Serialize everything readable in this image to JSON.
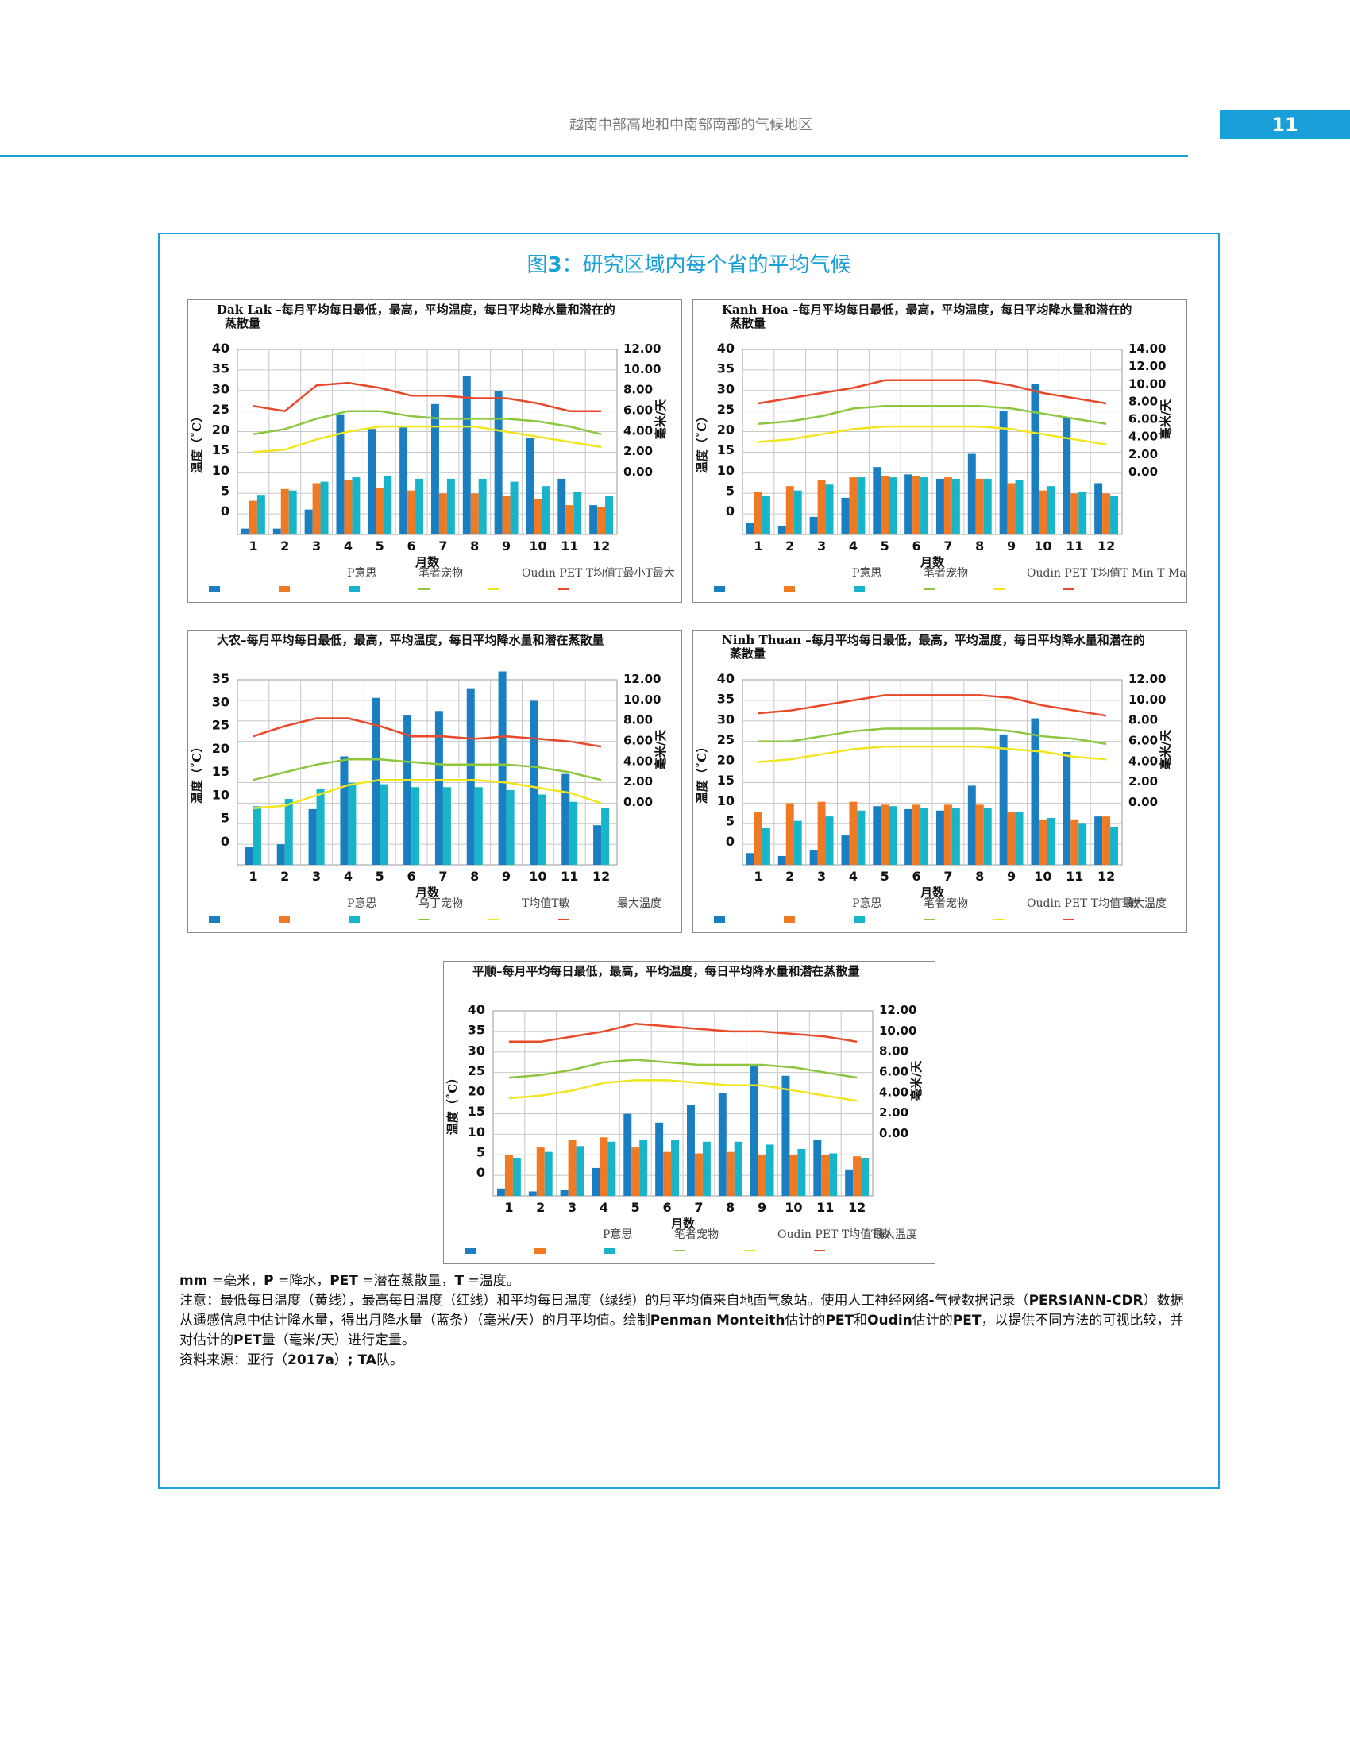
{
  "header": {
    "title": "越南中部高地和中南部南部的气候地区",
    "page_number": "11"
  },
  "figure": {
    "title_prefix": "图",
    "title_num": "3",
    "title_rest": "：研究区域内每个省的平均气候"
  },
  "colors": {
    "accent": "#1aa0d8",
    "precip": "#1a7fc1",
    "pet_pm": "#f07a23",
    "pet_oudin": "#18b4c9",
    "t_avg": "#8cc63e",
    "t_min": "#f0e51f",
    "t_max": "#e8492a"
  },
  "chart_data": [
    {
      "type": "bar",
      "title_line1": "Dak Lak –每月平均每日最低，最高，平均温度，每日平均降水量和潜在的",
      "title_line2": "蒸散量",
      "xlabel": "月数",
      "ylabel_left": "温度（˚C）",
      "ylabel_right": "毫米/天",
      "left_ticks": [
        "40",
        "35",
        "30",
        "25",
        "20",
        "15",
        "10",
        "5",
        "0"
      ],
      "right_ticks": [
        "12.00",
        "10.00",
        "8.00",
        "6.00",
        "4.00",
        "2.00",
        "0.00"
      ],
      "categories": [
        "1",
        "2",
        "3",
        "4",
        "5",
        "6",
        "7",
        "8",
        "9",
        "10",
        "11",
        "12"
      ],
      "legend": [
        "P意思",
        "笔者宠物",
        "Oudin PET T均值T最小T最大"
      ],
      "series": [
        {
          "name": "P意思",
          "axis": "mm",
          "values": [
            0.4,
            0.4,
            1.7,
            8.2,
            7.2,
            7.3,
            8.9,
            10.8,
            9.8,
            6.6,
            3.8,
            2.0
          ]
        },
        {
          "name": "笔者宠物",
          "axis": "mm",
          "values": [
            2.3,
            3.1,
            3.5,
            3.7,
            3.2,
            3.0,
            2.8,
            2.8,
            2.6,
            2.4,
            2.0,
            1.9
          ]
        },
        {
          "name": "Oudin PET",
          "axis": "mm",
          "values": [
            2.7,
            3.0,
            3.6,
            3.9,
            4.0,
            3.8,
            3.8,
            3.8,
            3.6,
            3.3,
            2.9,
            2.6
          ]
        },
        {
          "name": "T均值",
          "axis": "C",
          "values": [
            19.5,
            20.5,
            22.5,
            24,
            24,
            23,
            22.5,
            22.5,
            22.5,
            22,
            21,
            19.5
          ]
        },
        {
          "name": "T最小",
          "axis": "C",
          "values": [
            16,
            16.5,
            18.5,
            20,
            21,
            21,
            21,
            21,
            20,
            19,
            18,
            17
          ]
        },
        {
          "name": "T最大",
          "axis": "C",
          "values": [
            25,
            24,
            29,
            29.5,
            28.5,
            27,
            27,
            26.5,
            26.5,
            25.5,
            24,
            24
          ]
        }
      ]
    },
    {
      "type": "bar",
      "title_line1": "Kanh Hoa –每月平均每日最低，最高，平均温度，每日平均降水量和潜在的",
      "title_line2": "蒸散量",
      "xlabel": "月数",
      "ylabel_left": "温度（˚C）",
      "ylabel_right": "毫米/天",
      "left_ticks": [
        "40",
        "35",
        "30",
        "25",
        "20",
        "15",
        "10",
        "5",
        "0"
      ],
      "right_ticks": [
        "14.00",
        "12.00",
        "10.00",
        "8.00",
        "6.00",
        "4.00",
        "2.00",
        "0.00"
      ],
      "categories": [
        "1",
        "2",
        "3",
        "4",
        "5",
        "6",
        "7",
        "8",
        "9",
        "10",
        "11",
        "12"
      ],
      "legend": [
        "P意思",
        "笔者宠物",
        "Oudin PET T均值T Min T Max"
      ],
      "series": [
        {
          "name": "P意思",
          "axis": "mm",
          "values": [
            0.8,
            0.6,
            1.2,
            2.5,
            4.6,
            4.1,
            3.8,
            5.5,
            8.4,
            10.3,
            8.0,
            3.5
          ]
        },
        {
          "name": "笔者宠物",
          "axis": "mm",
          "values": [
            2.9,
            3.3,
            3.7,
            3.9,
            4.0,
            4.0,
            3.9,
            3.8,
            3.5,
            3.0,
            2.8,
            2.8
          ]
        },
        {
          "name": "Oudin PET",
          "axis": "mm",
          "values": [
            2.6,
            3.0,
            3.4,
            3.9,
            3.9,
            3.9,
            3.8,
            3.8,
            3.7,
            3.3,
            2.9,
            2.6
          ]
        },
        {
          "name": "T均值",
          "axis": "C",
          "values": [
            21.5,
            22,
            23,
            24.5,
            25,
            25,
            25,
            25,
            24.5,
            23.5,
            22.5,
            21.5
          ]
        },
        {
          "name": "T最小",
          "axis": "C",
          "values": [
            18,
            18.5,
            19.5,
            20.5,
            21,
            21,
            21,
            21,
            20.5,
            19.5,
            18.5,
            17.5
          ]
        },
        {
          "name": "T最大",
          "axis": "C",
          "values": [
            25.5,
            26.5,
            27.5,
            28.5,
            30,
            30,
            30,
            30,
            29,
            27.5,
            26.5,
            25.5
          ]
        }
      ]
    },
    {
      "type": "bar",
      "title_line1": "大农–每月平均每日最低，最高，平均温度，每日平均降水量和潜在蒸散量",
      "title_line2": "",
      "xlabel": "月数",
      "ylabel_left": "温度（˚C）",
      "ylabel_right": "毫米/天",
      "left_ticks": [
        "35",
        "30",
        "25",
        "20",
        "15",
        "10",
        "5",
        "0"
      ],
      "right_ticks": [
        "12.00",
        "10.00",
        "8.00",
        "6.00",
        "4.00",
        "2.00",
        "0.00"
      ],
      "categories": [
        "1",
        "2",
        "3",
        "4",
        "5",
        "6",
        "7",
        "8",
        "9",
        "10",
        "11",
        "12"
      ],
      "legend": [
        "P意思",
        "乌丁宠物",
        "T均值T敏",
        "最大温度"
      ],
      "series": [
        {
          "name": "P意思",
          "axis": "mm",
          "values": [
            1.2,
            1.4,
            3.8,
            7.4,
            11.4,
            10.2,
            10.5,
            12.0,
            13.2,
            11.2,
            6.2,
            2.7
          ]
        },
        {
          "name": "乌丁宠物",
          "axis": "mm",
          "values": [
            4.0,
            4.5,
            5.2,
            5.6,
            5.5,
            5.3,
            5.3,
            5.3,
            5.1,
            4.8,
            4.3,
            3.9
          ]
        },
        {
          "name": "T均值",
          "axis": "C",
          "values": [
            16.5,
            18,
            19.5,
            20.5,
            20.5,
            20,
            19.5,
            19.5,
            19.5,
            19,
            18,
            16.5
          ]
        },
        {
          "name": "T敏",
          "axis": "C",
          "values": [
            11,
            11.5,
            13.5,
            15.5,
            16.5,
            16.5,
            16.5,
            16.5,
            16,
            15,
            14,
            12
          ]
        },
        {
          "name": "最大温度",
          "axis": "C",
          "values": [
            25,
            27,
            28.5,
            28.5,
            27,
            25,
            25,
            24.5,
            25,
            24.5,
            24,
            23
          ]
        }
      ]
    },
    {
      "type": "bar",
      "title_line1": "Ninh Thuan –每月平均每日最低，最高，平均温度，每日平均降水量和潜在的",
      "title_line2": "蒸散量",
      "xlabel": "月数",
      "ylabel_left": "温度（˚C）",
      "ylabel_right": "毫米/天",
      "left_ticks": [
        "40",
        "35",
        "30",
        "25",
        "20",
        "15",
        "10",
        "5",
        "0"
      ],
      "right_ticks": [
        "12.00",
        "10.00",
        "8.00",
        "6.00",
        "4.00",
        "2.00",
        "0.00"
      ],
      "categories": [
        "1",
        "2",
        "3",
        "4",
        "5",
        "6",
        "7",
        "8",
        "9",
        "10",
        "11",
        "12"
      ],
      "legend": [
        "P意思",
        "笔者宠物",
        "Oudin PET T均值T敏",
        "最大温度"
      ],
      "series": [
        {
          "name": "P意思",
          "axis": "mm",
          "values": [
            0.8,
            0.6,
            1.0,
            2.0,
            4.0,
            3.8,
            3.7,
            5.4,
            8.9,
            10.0,
            7.7,
            3.3
          ]
        },
        {
          "name": "笔者宠物",
          "axis": "mm",
          "values": [
            3.6,
            4.2,
            4.3,
            4.3,
            4.1,
            4.1,
            4.1,
            4.1,
            3.6,
            3.1,
            3.1,
            3.3
          ]
        },
        {
          "name": "Oudin PET",
          "axis": "mm",
          "values": [
            2.5,
            3.0,
            3.3,
            3.7,
            4.0,
            3.9,
            3.9,
            3.9,
            3.6,
            3.2,
            2.8,
            2.6
          ]
        },
        {
          "name": "T均值",
          "axis": "C",
          "values": [
            24,
            24,
            25,
            26,
            26.5,
            26.5,
            26.5,
            26.5,
            26,
            25,
            24.5,
            23.5
          ]
        },
        {
          "name": "T敏",
          "axis": "C",
          "values": [
            20,
            20.5,
            21.5,
            22.5,
            23,
            23,
            23,
            23,
            22.5,
            22,
            21,
            20.5
          ]
        },
        {
          "name": "最大温度",
          "axis": "C",
          "values": [
            29.5,
            30,
            31,
            32,
            33,
            33,
            33,
            33,
            32.5,
            31,
            30,
            29
          ]
        }
      ]
    },
    {
      "type": "bar",
      "title_line1": "平顺–每月平均每日最低，最高，平均温度，每日平均降水量和潜在蒸散量",
      "title_line2": "",
      "xlabel": "月数",
      "ylabel_left": "温度（˚C）",
      "ylabel_right": "毫米/天",
      "left_ticks": [
        "40",
        "35",
        "30",
        "25",
        "20",
        "15",
        "10",
        "5",
        "0"
      ],
      "right_ticks": [
        "12.00",
        "10.00",
        "8.00",
        "6.00",
        "4.00",
        "2.00",
        "0.00"
      ],
      "categories": [
        "1",
        "2",
        "3",
        "4",
        "5",
        "6",
        "7",
        "8",
        "9",
        "10",
        "11",
        "12"
      ],
      "legend": [
        "P意思",
        "笔者宠物",
        "Oudin PET T均值T敏",
        "最大温度"
      ],
      "series": [
        {
          "name": "P意思",
          "axis": "mm",
          "values": [
            0.5,
            0.3,
            0.4,
            1.9,
            5.6,
            5.0,
            6.2,
            7.0,
            9.0,
            8.2,
            3.8,
            1.8
          ]
        },
        {
          "name": "笔者宠物",
          "axis": "mm",
          "values": [
            2.8,
            3.3,
            3.8,
            4.0,
            3.3,
            3.0,
            2.9,
            3.0,
            2.8,
            2.8,
            2.8,
            2.7
          ]
        },
        {
          "name": "Oudin PET",
          "axis": "mm",
          "values": [
            2.6,
            3.0,
            3.4,
            3.7,
            3.8,
            3.8,
            3.7,
            3.7,
            3.5,
            3.2,
            2.9,
            2.6
          ]
        },
        {
          "name": "T均值",
          "axis": "C",
          "values": [
            23,
            23.5,
            24.5,
            26,
            26.5,
            26,
            25.5,
            25.5,
            25.5,
            25,
            24,
            23
          ]
        },
        {
          "name": "T敏",
          "axis": "C",
          "values": [
            19,
            19.5,
            20.5,
            22,
            22.5,
            22.5,
            22,
            21.5,
            21.5,
            20.5,
            19.5,
            18.5
          ]
        },
        {
          "name": "最大温度",
          "axis": "C",
          "values": [
            30,
            30,
            31,
            32,
            33.5,
            33,
            32.5,
            32,
            32,
            31.5,
            31,
            30
          ]
        }
      ]
    }
  ],
  "notes": {
    "line1_a": "mm",
    "line1_b": " =毫米，",
    "line1_c": "P",
    "line1_d": " =降水，",
    "line1_e": "PET",
    "line1_f": " =潜在蒸散量，",
    "line1_g": "T",
    "line1_h": " =温度。",
    "para_a": "注意：最低每日温度（黄线），最高每日温度（红线）和平均每日温度（绿线）的月平均值来自地面气象站。使用人工神经网络",
    "para_b": "-",
    "para_c": "气候数据记录（",
    "para_d": "PERSIANN-CDR",
    "para_e": "）数据从遥感信息中估计降水量，得出月降水量（蓝条）（毫米",
    "para_f": "/",
    "para_g": "天）的月平均值。绘制",
    "para_h": "Penman Monteith",
    "para_i": "估计的",
    "para_j": "PET",
    "para_k": "和",
    "para_l": "Oudin",
    "para_m": "估计的",
    "para_n": "PET",
    "para_o": "，以提供不同方法的可视比较，并对估计的",
    "para_p": "PET",
    "para_q": "量（毫米",
    "para_r": "/",
    "para_s": "天）进行定量。",
    "source_a": "资料来源：亚行（",
    "source_b": "2017a",
    "source_c": "）",
    "source_d": "; TA",
    "source_e": "队。"
  }
}
